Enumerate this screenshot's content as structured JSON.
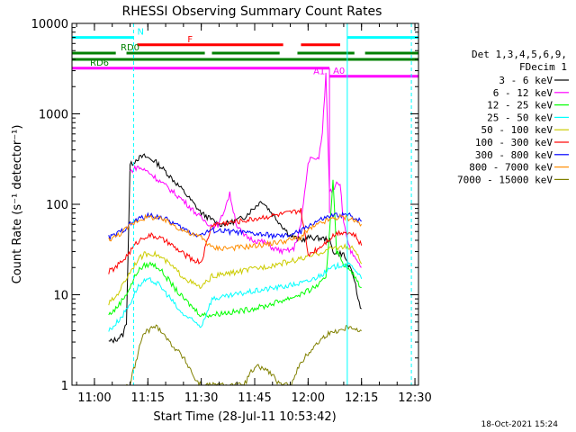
{
  "chart_data": {
    "type": "line",
    "title": "RHESSI Observing Summary Count Rates",
    "xlabel": "Start Time (28-Jul-11 10:53:42)",
    "ylabel": "Count Rate (s⁻¹ detector⁻¹)",
    "y_scale": "log",
    "ylim": [
      1,
      10000
    ],
    "xlim": [
      "10:53:42",
      "12:31:00"
    ],
    "x_ticks": [
      "11:00",
      "11:15",
      "11:30",
      "11:45",
      "12:00",
      "12:15",
      "12:30"
    ],
    "y_ticks": [
      "1",
      "10",
      "100",
      "1000",
      "10000"
    ],
    "legend_header": [
      "Det 1,3,4,5,6,9,",
      "FDecim 1"
    ],
    "timestamp": "18-Oct-2021 15:24",
    "series": [
      {
        "name": "3 - 6 keV",
        "color": "#000000",
        "points": [
          [
            "11:04",
            3.0
          ],
          [
            "11:06",
            3.2
          ],
          [
            "11:08",
            3.6
          ],
          [
            "11:09",
            5.0
          ],
          [
            "11:10",
            270
          ],
          [
            "11:12",
            320
          ],
          [
            "11:14",
            340
          ],
          [
            "11:17",
            300
          ],
          [
            "11:20",
            230
          ],
          [
            "11:25",
            140
          ],
          [
            "11:30",
            80
          ],
          [
            "11:35",
            60
          ],
          [
            "11:38",
            62
          ],
          [
            "11:42",
            72
          ],
          [
            "11:47",
            110
          ],
          [
            "11:51",
            70
          ],
          [
            "11:55",
            45
          ],
          [
            "11:58",
            40
          ],
          [
            "12:00",
            43
          ],
          [
            "12:04",
            42
          ],
          [
            "12:06",
            40
          ],
          [
            "12:07",
            30
          ],
          [
            "12:10",
            28
          ],
          [
            "12:13",
            15
          ],
          [
            "12:14",
            9
          ],
          [
            "12:15",
            7
          ]
        ]
      },
      {
        "name": "6 - 12 keV",
        "color": "#ff00ff",
        "points": [
          [
            "11:10",
            230
          ],
          [
            "11:12",
            260
          ],
          [
            "11:15",
            230
          ],
          [
            "11:20",
            160
          ],
          [
            "11:25",
            110
          ],
          [
            "11:30",
            70
          ],
          [
            "11:33",
            58
          ],
          [
            "11:35",
            60
          ],
          [
            "11:38",
            130
          ],
          [
            "11:40",
            58
          ],
          [
            "11:42",
            45
          ],
          [
            "11:45",
            40
          ],
          [
            "11:48",
            38
          ],
          [
            "11:50",
            33
          ],
          [
            "11:53",
            30
          ],
          [
            "11:56",
            32
          ],
          [
            "11:58",
            60
          ],
          [
            "12:00",
            280
          ],
          [
            "12:01",
            350
          ],
          [
            "12:02",
            300
          ],
          [
            "12:03",
            330
          ],
          [
            "12:04",
            600
          ],
          [
            "12:05",
            2800
          ],
          [
            "12:06",
            140
          ],
          [
            "12:07",
            145
          ],
          [
            "12:08",
            180
          ],
          [
            "12:09",
            170
          ],
          [
            "12:10",
            60
          ],
          [
            "12:12",
            30
          ],
          [
            "12:14",
            22
          ],
          [
            "12:15",
            20
          ]
        ]
      },
      {
        "name": "12 - 25 keV",
        "color": "#00ff00",
        "points": [
          [
            "11:04",
            6
          ],
          [
            "11:06",
            7
          ],
          [
            "11:08",
            9
          ],
          [
            "11:10",
            12
          ],
          [
            "11:12",
            18
          ],
          [
            "11:14",
            21
          ],
          [
            "11:16",
            22
          ],
          [
            "11:18",
            20
          ],
          [
            "11:20",
            16
          ],
          [
            "11:24",
            10
          ],
          [
            "11:28",
            7
          ],
          [
            "11:30",
            6
          ],
          [
            "11:33",
            6
          ],
          [
            "11:36",
            6.3
          ],
          [
            "11:40",
            6.5
          ],
          [
            "11:44",
            7
          ],
          [
            "11:48",
            7.5
          ],
          [
            "11:52",
            8.5
          ],
          [
            "11:56",
            9.5
          ],
          [
            "12:00",
            11
          ],
          [
            "12:03",
            13
          ],
          [
            "12:05",
            15
          ],
          [
            "12:06",
            50
          ],
          [
            "12:07",
            190
          ],
          [
            "12:08",
            30
          ],
          [
            "12:10",
            22
          ],
          [
            "12:13",
            16
          ],
          [
            "12:15",
            12
          ]
        ]
      },
      {
        "name": "25 - 50 keV",
        "color": "#00ffff",
        "points": [
          [
            "11:04",
            4
          ],
          [
            "11:06",
            4.8
          ],
          [
            "11:08",
            6
          ],
          [
            "11:10",
            8
          ],
          [
            "11:12",
            12
          ],
          [
            "11:14",
            14
          ],
          [
            "11:16",
            14.5
          ],
          [
            "11:18",
            13
          ],
          [
            "11:21",
            9.5
          ],
          [
            "11:24",
            6.5
          ],
          [
            "11:28",
            5
          ],
          [
            "11:30",
            4.5
          ],
          [
            "11:33",
            9
          ],
          [
            "11:37",
            9.5
          ],
          [
            "11:42",
            10.5
          ],
          [
            "11:48",
            11.5
          ],
          [
            "11:54",
            12.5
          ],
          [
            "12:00",
            14
          ],
          [
            "12:04",
            17
          ],
          [
            "12:07",
            20
          ],
          [
            "12:10",
            22
          ],
          [
            "12:13",
            20
          ],
          [
            "12:15",
            15
          ]
        ]
      },
      {
        "name": "50 - 100 keV",
        "color": "#cccc00",
        "points": [
          [
            "11:04",
            8
          ],
          [
            "11:06",
            9.5
          ],
          [
            "11:08",
            13
          ],
          [
            "11:10",
            18
          ],
          [
            "11:12",
            24
          ],
          [
            "11:14",
            28
          ],
          [
            "11:16",
            29
          ],
          [
            "11:18",
            27
          ],
          [
            "11:21",
            22
          ],
          [
            "11:24",
            17
          ],
          [
            "11:28",
            13
          ],
          [
            "11:30",
            12
          ],
          [
            "11:33",
            16
          ],
          [
            "11:37",
            17
          ],
          [
            "11:42",
            18.5
          ],
          [
            "11:48",
            20.5
          ],
          [
            "11:54",
            23
          ],
          [
            "12:00",
            26
          ],
          [
            "12:04",
            30
          ],
          [
            "12:07",
            33
          ],
          [
            "12:10",
            34
          ],
          [
            "12:13",
            32
          ],
          [
            "12:15",
            22
          ]
        ]
      },
      {
        "name": "100 - 300 keV",
        "color": "#ff0000",
        "points": [
          [
            "11:04",
            18
          ],
          [
            "11:06",
            20
          ],
          [
            "11:08",
            24
          ],
          [
            "11:10",
            30
          ],
          [
            "11:12",
            38
          ],
          [
            "11:14",
            44
          ],
          [
            "11:16",
            45
          ],
          [
            "11:18",
            43
          ],
          [
            "11:21",
            37
          ],
          [
            "11:24",
            30
          ],
          [
            "11:28",
            24
          ],
          [
            "11:30",
            23
          ],
          [
            "11:33",
            60
          ],
          [
            "11:38",
            63
          ],
          [
            "11:43",
            67
          ],
          [
            "11:48",
            73
          ],
          [
            "11:53",
            78
          ],
          [
            "11:58",
            85
          ],
          [
            "12:00",
            28
          ],
          [
            "12:03",
            33
          ],
          [
            "12:06",
            42
          ],
          [
            "12:08",
            48
          ],
          [
            "12:10",
            50
          ],
          [
            "12:13",
            46
          ],
          [
            "12:15",
            35
          ]
        ]
      },
      {
        "name": "300 - 800 keV",
        "color": "#0000ff",
        "points": [
          [
            "11:04",
            43
          ],
          [
            "11:06",
            46
          ],
          [
            "11:08",
            52
          ],
          [
            "11:10",
            60
          ],
          [
            "11:12",
            68
          ],
          [
            "11:14",
            73
          ],
          [
            "11:16",
            75
          ],
          [
            "11:18",
            73
          ],
          [
            "11:21",
            66
          ],
          [
            "11:24",
            56
          ],
          [
            "11:28",
            47
          ],
          [
            "11:30",
            46
          ],
          [
            "11:33",
            52
          ],
          [
            "11:38",
            50
          ],
          [
            "11:43",
            48
          ],
          [
            "11:48",
            46
          ],
          [
            "11:53",
            44
          ],
          [
            "11:58",
            50
          ],
          [
            "12:00",
            58
          ],
          [
            "12:03",
            66
          ],
          [
            "12:06",
            73
          ],
          [
            "12:09",
            77
          ],
          [
            "12:12",
            75
          ],
          [
            "12:15",
            65
          ]
        ]
      },
      {
        "name": "800 - 7000 keV",
        "color": "#ff8c00",
        "points": [
          [
            "11:04",
            41
          ],
          [
            "11:06",
            44
          ],
          [
            "11:08",
            50
          ],
          [
            "11:10",
            58
          ],
          [
            "11:12",
            66
          ],
          [
            "11:14",
            71
          ],
          [
            "11:16",
            72
          ],
          [
            "11:18",
            70
          ],
          [
            "11:21",
            63
          ],
          [
            "11:24",
            54
          ],
          [
            "11:28",
            45
          ],
          [
            "11:30",
            44
          ],
          [
            "11:33",
            33
          ],
          [
            "11:38",
            33
          ],
          [
            "11:43",
            34
          ],
          [
            "11:48",
            36
          ],
          [
            "11:53",
            39
          ],
          [
            "11:58",
            43
          ],
          [
            "12:00",
            52
          ],
          [
            "12:03",
            60
          ],
          [
            "12:06",
            68
          ],
          [
            "12:09",
            72
          ],
          [
            "12:12",
            70
          ],
          [
            "12:15",
            60
          ]
        ]
      },
      {
        "name": "7000 - 15000 keV",
        "color": "#808000",
        "points": [
          [
            "11:09",
            1
          ],
          [
            "11:10",
            1
          ],
          [
            "11:11",
            1.5
          ],
          [
            "11:12",
            2
          ],
          [
            "11:13",
            3
          ],
          [
            "11:14",
            3.8
          ],
          [
            "11:15",
            4
          ],
          [
            "11:17",
            4.5
          ],
          [
            "11:19",
            4
          ],
          [
            "11:21",
            3
          ],
          [
            "11:23",
            2.5
          ],
          [
            "11:25",
            2
          ],
          [
            "11:27",
            1.5
          ],
          [
            "11:28",
            1.2
          ],
          [
            "11:30",
            1
          ],
          [
            "11:42",
            1
          ],
          [
            "11:44",
            1.4
          ],
          [
            "11:46",
            1.6
          ],
          [
            "11:48",
            1.5
          ],
          [
            "11:50",
            1.3
          ],
          [
            "11:52",
            1
          ],
          [
            "11:55",
            1
          ],
          [
            "11:57",
            1.5
          ],
          [
            "11:59",
            2
          ],
          [
            "12:01",
            2.5
          ],
          [
            "12:03",
            3
          ],
          [
            "12:05",
            3.6
          ],
          [
            "12:08",
            4
          ],
          [
            "12:10",
            4.2
          ],
          [
            "12:12",
            4.6
          ],
          [
            "12:14",
            4
          ],
          [
            "12:15",
            4
          ]
        ]
      }
    ],
    "state_bars": [
      {
        "label": "N",
        "color": "#00ffff",
        "level": 7000,
        "segments": [
          [
            "10:53:42",
            "11:11"
          ],
          [
            "12:11",
            "12:31"
          ]
        ]
      },
      {
        "label": "F",
        "color": "#ff0000",
        "level": 5800,
        "segments": [
          [
            "11:12",
            "11:53"
          ],
          [
            "11:58",
            "12:09"
          ]
        ]
      },
      {
        "label": "RD0",
        "color": "#008000",
        "level": 4700,
        "segments": [
          [
            "10:53:42",
            "11:06"
          ],
          [
            "11:09",
            "11:31"
          ],
          [
            "11:33",
            "11:52"
          ],
          [
            "11:57",
            "12:13"
          ],
          [
            "12:16",
            "12:31"
          ]
        ]
      },
      {
        "label": "RD6",
        "color": "#008000",
        "level": 4000,
        "segments": [
          [
            "10:53:42",
            "12:31"
          ]
        ]
      },
      {
        "label": "A1",
        "color": "#ff00ff",
        "level": 3200,
        "segments": [
          [
            "10:53:42",
            "12:06"
          ]
        ]
      },
      {
        "label": "A0",
        "color": "#ff00ff",
        "level": 2600,
        "segments": [
          [
            "12:06",
            "12:31"
          ]
        ]
      }
    ],
    "vertical_markers": [
      {
        "time": "11:11",
        "color": "#00ffff",
        "style": "dashed"
      },
      {
        "time": "12:29",
        "color": "#00ffff",
        "style": "dashed"
      },
      {
        "time": "12:11",
        "color": "#00ffff",
        "style": "solid"
      },
      {
        "time": "10:53:42",
        "color": "#00ffff",
        "style": "solid"
      },
      {
        "time": "12:06",
        "color": "#ff00ff",
        "style": "solid"
      }
    ]
  }
}
